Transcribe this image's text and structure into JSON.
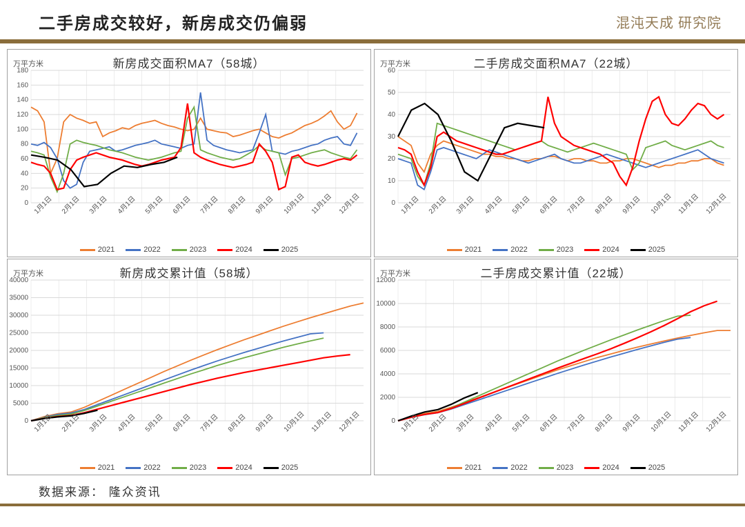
{
  "page_title": "二手房成交较好，新房成交仍偏弱",
  "logo_text": "混沌天成 研究院",
  "source_label": "数据来源：",
  "source_value": "隆众资讯",
  "colors": {
    "2021": "#ed7d31",
    "2022": "#4472c4",
    "2023": "#70ad47",
    "2024": "#ff0000",
    "2025": "#000000",
    "grid": "#d9d9d9",
    "axis": "#999999",
    "rule": "#8a6d3b",
    "text": "#333333"
  },
  "x_labels": [
    "1月1日",
    "2月1日",
    "3月1日",
    "4月1日",
    "5月1日",
    "6月1日",
    "7月1日",
    "8月1日",
    "9月1日",
    "10月1日",
    "11月1日",
    "12月1日"
  ],
  "legend_labels": [
    "2021",
    "2022",
    "2023",
    "2024",
    "2025"
  ],
  "charts": [
    {
      "id": "c1",
      "title": "新房成交面积MA7（58城）",
      "yunit": "万平方米",
      "ylim": [
        0,
        180
      ],
      "ystep": 20,
      "series": {
        "2021": [
          130,
          125,
          110,
          40,
          60,
          110,
          120,
          115,
          112,
          108,
          110,
          90,
          95,
          98,
          102,
          100,
          105,
          108,
          110,
          112,
          108,
          105,
          103,
          100,
          98,
          100,
          115,
          100,
          98,
          96,
          95,
          90,
          92,
          95,
          98,
          100,
          95,
          90,
          88,
          92,
          95,
          100,
          105,
          108,
          112,
          118,
          125,
          110,
          100,
          105,
          122
        ],
        "2022": [
          80,
          78,
          82,
          75,
          60,
          30,
          20,
          25,
          55,
          70,
          72,
          74,
          76,
          70,
          72,
          75,
          78,
          80,
          82,
          85,
          80,
          78,
          76,
          74,
          78,
          80,
          150,
          85,
          78,
          75,
          72,
          70,
          68,
          70,
          72,
          95,
          120,
          70,
          68,
          66,
          70,
          72,
          75,
          78,
          80,
          85,
          88,
          90,
          80,
          78,
          95
        ],
        "2023": [
          70,
          68,
          65,
          35,
          15,
          40,
          80,
          85,
          82,
          80,
          78,
          75,
          72,
          70,
          68,
          65,
          62,
          60,
          58,
          60,
          62,
          65,
          68,
          70,
          115,
          130,
          72,
          68,
          65,
          62,
          60,
          58,
          60,
          65,
          70,
          78,
          72,
          70,
          68,
          38,
          60,
          62,
          65,
          68,
          70,
          72,
          68,
          65,
          62,
          60,
          72
        ],
        "2024": [
          55,
          52,
          50,
          40,
          18,
          20,
          45,
          58,
          62,
          65,
          68,
          65,
          62,
          60,
          58,
          55,
          52,
          50,
          52,
          55,
          58,
          60,
          62,
          75,
          135,
          68,
          62,
          58,
          55,
          52,
          50,
          48,
          50,
          52,
          55,
          80,
          70,
          55,
          18,
          22,
          62,
          65,
          55,
          52,
          50,
          52,
          55,
          58,
          60,
          58,
          65
        ],
        "2025": [
          65,
          62,
          58,
          45,
          22,
          25,
          40,
          50,
          48,
          52,
          55,
          62
        ]
      }
    },
    {
      "id": "c2",
      "title": "二手房成交面积MA7（22城）",
      "yunit": "万平方米",
      "ylim": [
        0,
        60
      ],
      "ystep": 10,
      "series": {
        "2021": [
          30,
          28,
          26,
          18,
          14,
          22,
          26,
          28,
          27,
          26,
          25,
          24,
          23,
          22,
          22,
          21,
          21,
          20,
          20,
          19,
          19,
          20,
          20,
          21,
          21,
          20,
          19,
          20,
          20,
          19,
          19,
          18,
          18,
          19,
          19,
          20,
          20,
          19,
          18,
          17,
          16,
          17,
          17,
          18,
          18,
          19,
          19,
          20,
          20,
          18,
          17
        ],
        "2022": [
          20,
          19,
          18,
          8,
          6,
          14,
          24,
          25,
          24,
          23,
          22,
          21,
          20,
          22,
          24,
          23,
          22,
          21,
          20,
          19,
          18,
          19,
          20,
          21,
          22,
          20,
          19,
          18,
          18,
          19,
          20,
          21,
          22,
          21,
          20,
          19,
          18,
          17,
          16,
          17,
          18,
          19,
          20,
          21,
          22,
          23,
          24,
          22,
          20,
          19,
          18
        ],
        "2023": [
          22,
          21,
          20,
          12,
          8,
          18,
          36,
          35,
          34,
          33,
          32,
          31,
          30,
          29,
          28,
          27,
          26,
          25,
          24,
          25,
          26,
          27,
          28,
          26,
          25,
          24,
          23,
          24,
          25,
          26,
          27,
          26,
          25,
          24,
          23,
          22,
          15,
          18,
          25,
          26,
          27,
          28,
          26,
          25,
          24,
          25,
          26,
          27,
          28,
          26,
          25
        ],
        "2024": [
          25,
          24,
          22,
          14,
          8,
          16,
          30,
          32,
          30,
          28,
          27,
          26,
          25,
          24,
          23,
          22,
          22,
          23,
          24,
          25,
          26,
          27,
          28,
          48,
          36,
          30,
          28,
          26,
          25,
          24,
          23,
          22,
          20,
          18,
          12,
          8,
          16,
          28,
          38,
          46,
          48,
          40,
          36,
          35,
          38,
          42,
          45,
          44,
          40,
          38,
          40
        ],
        "2025": [
          30,
          42,
          45,
          40,
          28,
          14,
          10,
          22,
          34,
          36,
          35,
          34
        ]
      }
    },
    {
      "id": "c3",
      "title": "新房成交累计值（58城）",
      "yunit": "万平方米",
      "ylim": [
        0,
        40000
      ],
      "ystep": 5000,
      "series": {
        "2021": [
          0,
          1200,
          2000,
          2500,
          3800,
          5500,
          7200,
          8900,
          10600,
          12300,
          14000,
          15600,
          17200,
          18700,
          20200,
          21600,
          23000,
          24300,
          25600,
          26900,
          28100,
          29300,
          30400,
          31500,
          32600,
          33500
        ],
        "2022": [
          0,
          1000,
          1800,
          2200,
          3200,
          4600,
          6000,
          7400,
          8800,
          10200,
          11600,
          13000,
          14400,
          15700,
          17000,
          18200,
          19400,
          20500,
          21600,
          22700,
          23700,
          24700,
          25000
        ],
        "2023": [
          0,
          900,
          1500,
          1900,
          2900,
          4200,
          5500,
          6800,
          8100,
          9400,
          10700,
          12000,
          13300,
          14500,
          15700,
          16800,
          17900,
          18900,
          19900,
          20900,
          21800,
          22700,
          23500
        ],
        "2024": [
          0,
          700,
          1200,
          1500,
          2300,
          3300,
          4300,
          5300,
          6300,
          7300,
          8300,
          9300,
          10300,
          11200,
          12100,
          12900,
          13700,
          14400,
          15100,
          15800,
          16500,
          17200,
          17900,
          18400,
          18800
        ],
        "2025": [
          0,
          650,
          1100,
          1400,
          2100,
          3000
        ]
      }
    },
    {
      "id": "c4",
      "title": "二手房成交累计值（22城）",
      "yunit": "万平方米",
      "ylim": [
        0,
        12000
      ],
      "ystep": 2000,
      "series": {
        "2021": [
          0,
          350,
          620,
          800,
          1150,
          1550,
          1950,
          2350,
          2750,
          3150,
          3550,
          3950,
          4350,
          4700,
          5050,
          5400,
          5700,
          6000,
          6280,
          6550,
          6800,
          7050,
          7280,
          7500,
          7700,
          7700
        ],
        "2022": [
          0,
          300,
          520,
          680,
          1000,
          1380,
          1760,
          2140,
          2520,
          2900,
          3280,
          3660,
          4040,
          4400,
          4760,
          5100,
          5440,
          5760,
          6080,
          6380,
          6680,
          6960,
          7100
        ],
        "2023": [
          0,
          320,
          560,
          720,
          1100,
          1600,
          2100,
          2600,
          3100,
          3600,
          4100,
          4600,
          5100,
          5560,
          6020,
          6460,
          6900,
          7320,
          7740,
          8140,
          8540,
          8920,
          9000
        ],
        "2024": [
          0,
          300,
          540,
          700,
          1050,
          1480,
          1910,
          2340,
          2770,
          3200,
          3630,
          4060,
          4490,
          4900,
          5310,
          5710,
          6140,
          6600,
          7080,
          7580,
          8120,
          8700,
          9300,
          9800,
          10200
        ],
        "2025": [
          0,
          400,
          750,
          950,
          1400,
          1950,
          2400
        ]
      }
    }
  ]
}
